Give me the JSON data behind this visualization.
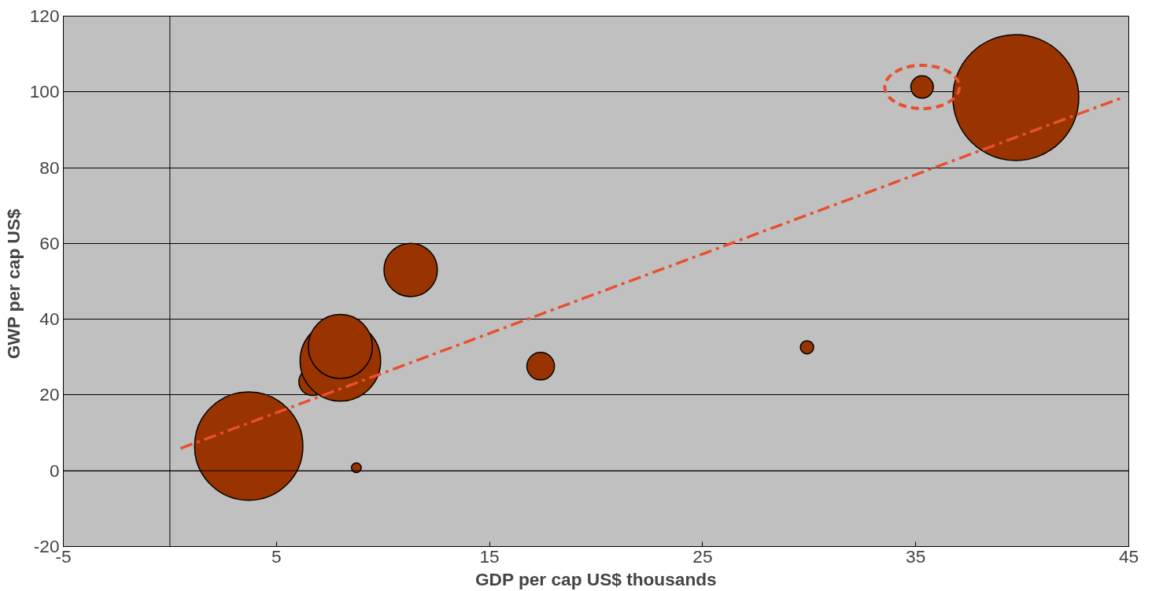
{
  "chart_data": {
    "type": "bubble",
    "xlabel": "GDP per cap US$ thousands",
    "ylabel": "GWP  per cap US$",
    "xlim": [
      -5,
      45
    ],
    "xticks": [
      -5,
      5,
      15,
      25,
      35,
      45
    ],
    "ylim": [
      -20,
      120
    ],
    "yticks": [
      -20,
      0,
      20,
      40,
      60,
      80,
      100,
      120
    ],
    "grid": "y",
    "series": [
      {
        "color": "#993300",
        "x": [
          3.7,
          8.75,
          6.7,
          8.0,
          8.0,
          11.3,
          17.4,
          29.9,
          35.3,
          39.7
        ],
        "values": [
          6.5,
          0.8,
          23.5,
          29,
          32.8,
          53,
          27.6,
          32.6,
          101.3,
          98.5
        ],
        "sizes": [
          0.74,
          0.006,
          0.048,
          0.41,
          0.26,
          0.18,
          0.048,
          0.011,
          0.032,
          1
        ]
      },
      {
        "type": "line",
        "color": "#e8502f",
        "line_style": "dashed",
        "x": [
          0.5,
          44.8
        ],
        "values": [
          5.9,
          98.7
        ]
      }
    ]
  }
}
